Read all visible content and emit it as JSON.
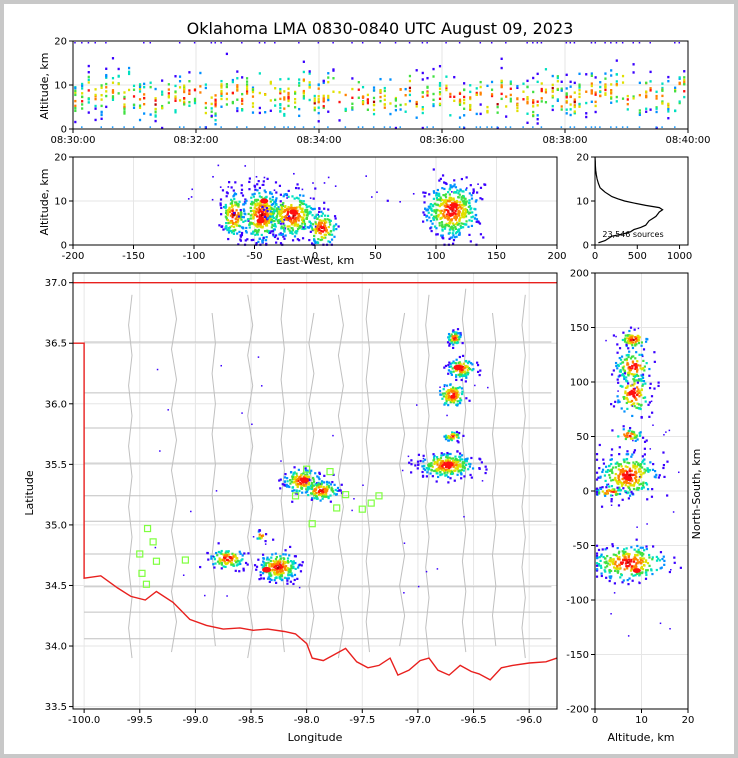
{
  "colors": {
    "background": "#ffffff",
    "border": "#c8c8c8",
    "state_line": "#e8201e",
    "county_line": "#c0c0c0",
    "station": "#7fff3f",
    "histogram": "#000000",
    "density_scale": [
      "#3a00ff",
      "#0090ff",
      "#00e0c0",
      "#40e040",
      "#e0e000",
      "#ff8000",
      "#ff1010",
      "#b00000"
    ]
  },
  "chart_data": [
    {
      "id": "time_height",
      "type": "scatter",
      "title": "Oklahoma LMA 0830-0840 UTC August 09, 2023",
      "xlabel": "",
      "ylabel": "Altitude, km",
      "x_tick_labels": [
        "08:30:00",
        "08:32:00",
        "08:34:00",
        "08:36:00",
        "08:38:00",
        "08:40:00"
      ],
      "x_ticks_minutes": [
        0,
        2,
        4,
        6,
        8,
        10
      ],
      "xlim_minutes": [
        0,
        10
      ],
      "ylim": [
        0,
        20
      ],
      "y_ticks": [
        0,
        10,
        20
      ],
      "grid": true
    },
    {
      "id": "east_west_altitude",
      "type": "scatter",
      "xlabel": "East-West, km",
      "ylabel": "Altitude, km",
      "xlim": [
        -200,
        200
      ],
      "ylim": [
        0,
        20
      ],
      "x_ticks": [
        -200,
        -150,
        -100,
        -50,
        0,
        50,
        100,
        150,
        200
      ],
      "y_ticks": [
        0,
        10,
        20
      ],
      "clusters": [
        {
          "x": -68,
          "y": 7,
          "sx": 5,
          "sy": 2.5,
          "n": 160
        },
        {
          "x": -45,
          "y": 7,
          "sx": 8,
          "sy": 3,
          "n": 330
        },
        {
          "x": -20,
          "y": 7,
          "sx": 10,
          "sy": 2.5,
          "n": 280
        },
        {
          "x": 5,
          "y": 4,
          "sx": 6,
          "sy": 2,
          "n": 120
        },
        {
          "x": 112,
          "y": 8,
          "sx": 11,
          "sy": 3,
          "n": 420
        }
      ],
      "hot_spots": [
        {
          "x": -42,
          "y": 10
        },
        {
          "x": -45,
          "y": 5.5
        },
        {
          "x": -18,
          "y": 7.5
        },
        {
          "x": 115,
          "y": 9
        }
      ],
      "grid": true
    },
    {
      "id": "altitude_histogram",
      "type": "line",
      "xlim": [
        0,
        1100
      ],
      "ylim": [
        0,
        20
      ],
      "x_ticks": [
        0,
        500,
        1000
      ],
      "y_ticks": [
        0,
        10,
        20
      ],
      "annotation": "23,546 sources",
      "altitude_km": [
        0.5,
        1,
        1.5,
        2,
        2.5,
        3,
        3.5,
        4,
        4.5,
        5,
        5.5,
        6,
        6.5,
        7,
        7.5,
        8,
        8.5,
        9,
        9.5,
        10,
        10.5,
        11,
        11.5,
        12,
        12.5,
        13,
        14,
        15,
        16,
        17,
        18,
        19,
        20
      ],
      "count": [
        40,
        120,
        160,
        200,
        330,
        420,
        460,
        540,
        600,
        620,
        640,
        680,
        720,
        740,
        760,
        800,
        760,
        600,
        470,
        350,
        270,
        200,
        160,
        120,
        90,
        60,
        40,
        25,
        15,
        8,
        5,
        3,
        0
      ]
    },
    {
      "id": "plan_view",
      "type": "scatter",
      "xlabel": "Longitude",
      "ylabel": "Latitude",
      "xlim": [
        -100.1,
        -95.75
      ],
      "ylim": [
        33.48,
        37.08
      ],
      "x_ticks": [
        -100.0,
        -99.5,
        -99.0,
        -98.5,
        -98.0,
        -97.5,
        -97.0,
        -96.5,
        -96.0
      ],
      "y_ticks": [
        33.5,
        34.0,
        34.5,
        35.0,
        35.5,
        36.0,
        36.5,
        37.0
      ],
      "clusters": [
        {
          "lon": -96.68,
          "lat": 36.55,
          "slon": 0.03,
          "slat": 0.03,
          "n": 60
        },
        {
          "lon": -96.62,
          "lat": 36.3,
          "slon": 0.06,
          "slat": 0.04,
          "n": 90
        },
        {
          "lon": -96.7,
          "lat": 36.08,
          "slon": 0.06,
          "slat": 0.05,
          "n": 110
        },
        {
          "lon": -96.7,
          "lat": 35.74,
          "slon": 0.04,
          "slat": 0.02,
          "n": 40
        },
        {
          "lon": -96.75,
          "lat": 35.5,
          "slon": 0.12,
          "slat": 0.05,
          "n": 260
        },
        {
          "lon": -98.05,
          "lat": 35.37,
          "slon": 0.08,
          "slat": 0.05,
          "n": 150
        },
        {
          "lon": -97.88,
          "lat": 35.29,
          "slon": 0.08,
          "slat": 0.04,
          "n": 120
        },
        {
          "lon": -98.72,
          "lat": 34.73,
          "slon": 0.08,
          "slat": 0.04,
          "n": 110
        },
        {
          "lon": -98.26,
          "lat": 34.66,
          "slon": 0.09,
          "slat": 0.06,
          "n": 210
        },
        {
          "lon": -98.42,
          "lat": 34.92,
          "slon": 0.02,
          "slat": 0.02,
          "n": 15
        }
      ],
      "hot_spots": [
        {
          "lon": -98.36,
          "lat": 34.63
        },
        {
          "lon": -98.02,
          "lat": 35.37
        },
        {
          "lon": -96.72,
          "lat": 35.5
        },
        {
          "lon": -96.64,
          "lat": 36.3
        }
      ],
      "stations": [
        {
          "lon": -99.43,
          "lat": 34.97
        },
        {
          "lon": -99.38,
          "lat": 34.86
        },
        {
          "lon": -99.5,
          "lat": 34.76
        },
        {
          "lon": -99.35,
          "lat": 34.7
        },
        {
          "lon": -99.09,
          "lat": 34.71
        },
        {
          "lon": -99.48,
          "lat": 34.6
        },
        {
          "lon": -99.44,
          "lat": 34.51
        },
        {
          "lon": -98.0,
          "lat": 35.46
        },
        {
          "lon": -97.79,
          "lat": 35.44
        },
        {
          "lon": -98.1,
          "lat": 35.24
        },
        {
          "lon": -97.65,
          "lat": 35.25
        },
        {
          "lon": -97.73,
          "lat": 35.14
        },
        {
          "lon": -97.95,
          "lat": 35.01
        },
        {
          "lon": -97.35,
          "lat": 35.24
        },
        {
          "lon": -97.42,
          "lat": 35.18
        },
        {
          "lon": -97.5,
          "lat": 35.13
        }
      ],
      "grid": true
    },
    {
      "id": "altitude_north_south",
      "type": "scatter",
      "xlabel": "Altitude, km",
      "ylabel": "North-South, km",
      "xlim": [
        0,
        20
      ],
      "ylim": [
        -200,
        200
      ],
      "x_ticks": [
        0,
        10,
        20
      ],
      "y_ticks": [
        -200,
        -150,
        -100,
        -50,
        0,
        50,
        100,
        150,
        200
      ],
      "clusters": [
        {
          "x": 8,
          "y": 140,
          "sx": 1.5,
          "sy": 4,
          "n": 70
        },
        {
          "x": 8,
          "y": 115,
          "sx": 2,
          "sy": 7,
          "n": 110
        },
        {
          "x": 8,
          "y": 90,
          "sx": 1.8,
          "sy": 10,
          "n": 110
        },
        {
          "x": 7,
          "y": 52,
          "sx": 1.5,
          "sy": 3,
          "n": 40
        },
        {
          "x": 7,
          "y": 15,
          "sx": 3,
          "sy": 10,
          "n": 260
        },
        {
          "x": 3,
          "y": 0,
          "sx": 2,
          "sy": 2,
          "n": 50
        },
        {
          "x": 7,
          "y": -65,
          "sx": 4,
          "sy": 8,
          "n": 260
        }
      ],
      "hot_spots": [
        {
          "x": 7,
          "y": 12
        },
        {
          "x": 9,
          "y": -73
        },
        {
          "x": 8,
          "y": 90
        }
      ],
      "grid": true
    }
  ]
}
